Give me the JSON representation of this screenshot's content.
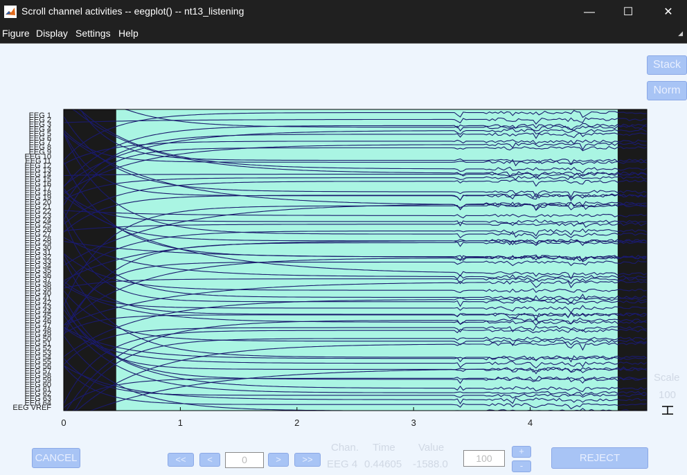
{
  "window": {
    "title": "Scroll channel activities -- eegplot() -- nt13_listening",
    "controls": [
      "minimize-icon",
      "maximize-icon",
      "close-icon"
    ]
  },
  "menu": [
    "Figure",
    "Display",
    "Settings",
    "Help"
  ],
  "buttons": {
    "stack": "Stack",
    "norm": "Norm",
    "cancel": "CANCEL",
    "reject": "REJECT",
    "prev_page": "<<",
    "prev": "<",
    "next": ">",
    "next_page": ">>",
    "plus": "+",
    "minus": "-"
  },
  "position_value": "0",
  "scale_value": "100",
  "scale": {
    "label": "Scale",
    "value": "100"
  },
  "readout": {
    "headers": [
      "Chan.",
      "Time",
      "Value"
    ],
    "chan": "EEG 4",
    "time": "0.44605",
    "value": "-1588.0"
  },
  "colors": {
    "plot_bg": "#aaf5e3",
    "trace": "#1a1a6e",
    "rejected_bg": "#1a1a1a",
    "button": "#a8c4f5"
  },
  "chart_data": {
    "type": "line",
    "xlabel": "",
    "ylabel": "",
    "xlim": [
      0,
      5
    ],
    "x_ticks": [
      "0",
      "1",
      "2",
      "3",
      "4"
    ],
    "shaded_region": [
      0.45,
      4.75
    ],
    "channels": [
      "EEG 1",
      "EEG 2",
      "EEG 3",
      "EEG 4",
      "EEG 5",
      "EEG 6",
      "EEG 7",
      "EEG 8",
      "EEG 9",
      "EEG 10",
      "EEG 11",
      "EEG 12",
      "EEG 13",
      "EEG 14",
      "EEG 15",
      "EEG 16",
      "EEG 17",
      "EEG 18",
      "EEG 19",
      "EEG 20",
      "EEG 21",
      "EEG 22",
      "EEG 23",
      "EEG 24",
      "EEG 25",
      "EEG 26",
      "EEG 27",
      "EEG 28",
      "EEG 29",
      "EEG 30",
      "EEG 31",
      "EEG 32",
      "EEG 33",
      "EEG 34",
      "EEG 35",
      "EEG 36",
      "EEG 37",
      "EEG 38",
      "EEG 39",
      "EEG 40",
      "EEG 41",
      "EEG 42",
      "EEG 43",
      "EEG 44",
      "EEG 45",
      "EEG 46",
      "EEG 47",
      "EEG 48",
      "EEG 49",
      "EEG 50",
      "EEG 51",
      "EEG 52",
      "EEG 53",
      "EEG 54",
      "EEG 55",
      "EEG 56",
      "EEG 57",
      "EEG 58",
      "EEG 59",
      "EEG 60",
      "EEG 61",
      "EEG 62",
      "EEG 63",
      "EEG 64",
      "EEG VREF"
    ]
  }
}
